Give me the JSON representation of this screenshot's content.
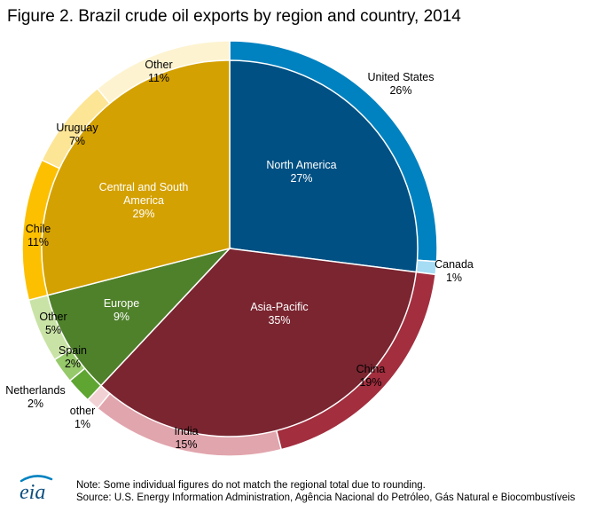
{
  "title": "Figure 2. Brazil crude oil exports by region and country, 2014",
  "chart_data": {
    "type": "pie",
    "subtype": "nested donut",
    "title": "Figure 2. Brazil crude oil exports by region and country, 2014",
    "unit": "%",
    "inner_ring": [
      {
        "label": "North America",
        "value_text": "27%",
        "value": 27,
        "color": "#005083"
      },
      {
        "label": "Asia-Pacific",
        "value_text": "35%",
        "value": 35,
        "color": "#7a2530"
      },
      {
        "label": "Europe",
        "value_text": "9%",
        "value": 9,
        "color": "#4f812b"
      },
      {
        "label": "Central and South America",
        "value_text": "29%",
        "value": 29,
        "color": "#d4a102"
      }
    ],
    "outer_ring": [
      {
        "label": "United States",
        "value_text": "26%",
        "value": 26,
        "region": "North America",
        "color": "#0082c0"
      },
      {
        "label": "Canada",
        "value_text": "1%",
        "value": 1,
        "region": "North America",
        "color": "#a6dcf4"
      },
      {
        "label": "China",
        "value_text": "19%",
        "value": 19,
        "region": "Asia-Pacific",
        "color": "#a22e3e"
      },
      {
        "label": "India",
        "value_text": "15%",
        "value": 15,
        "region": "Asia-Pacific",
        "color": "#e1a5ad"
      },
      {
        "label": "other",
        "value_text": "1%",
        "value": 1,
        "region": "Asia-Pacific",
        "color": "#f2d1d4"
      },
      {
        "label": "Netherlands",
        "value_text": "2%",
        "value": 2,
        "region": "Europe",
        "color": "#5fa532"
      },
      {
        "label": "Spain",
        "value_text": "2%",
        "value": 2,
        "region": "Europe",
        "color": "#96c96a"
      },
      {
        "label": "Other",
        "value_text": "5%",
        "value": 5,
        "region": "Europe",
        "color": "#c9e3a6"
      },
      {
        "label": "Chile",
        "value_text": "11%",
        "value": 11,
        "region": "Central and South America",
        "color": "#fcc000"
      },
      {
        "label": "Uruguay",
        "value_text": "7%",
        "value": 7,
        "region": "Central and South America",
        "color": "#fde596"
      },
      {
        "label": "Other",
        "value_text": "11%",
        "value": 11,
        "region": "Central and South America",
        "color": "#fdf3d0"
      }
    ]
  },
  "footer": {
    "note": "Note: Some individual figures do not match the regional total  due to rounding.",
    "source": "Source: U.S. Energy Information Administration, Agência Nacional do Petróleo, Gás Natural e Biocombustíveis"
  },
  "logo": {
    "text": "eia",
    "icon": "eia-logo-icon",
    "color": "#0d4e7f",
    "accent": "#0082c0"
  }
}
